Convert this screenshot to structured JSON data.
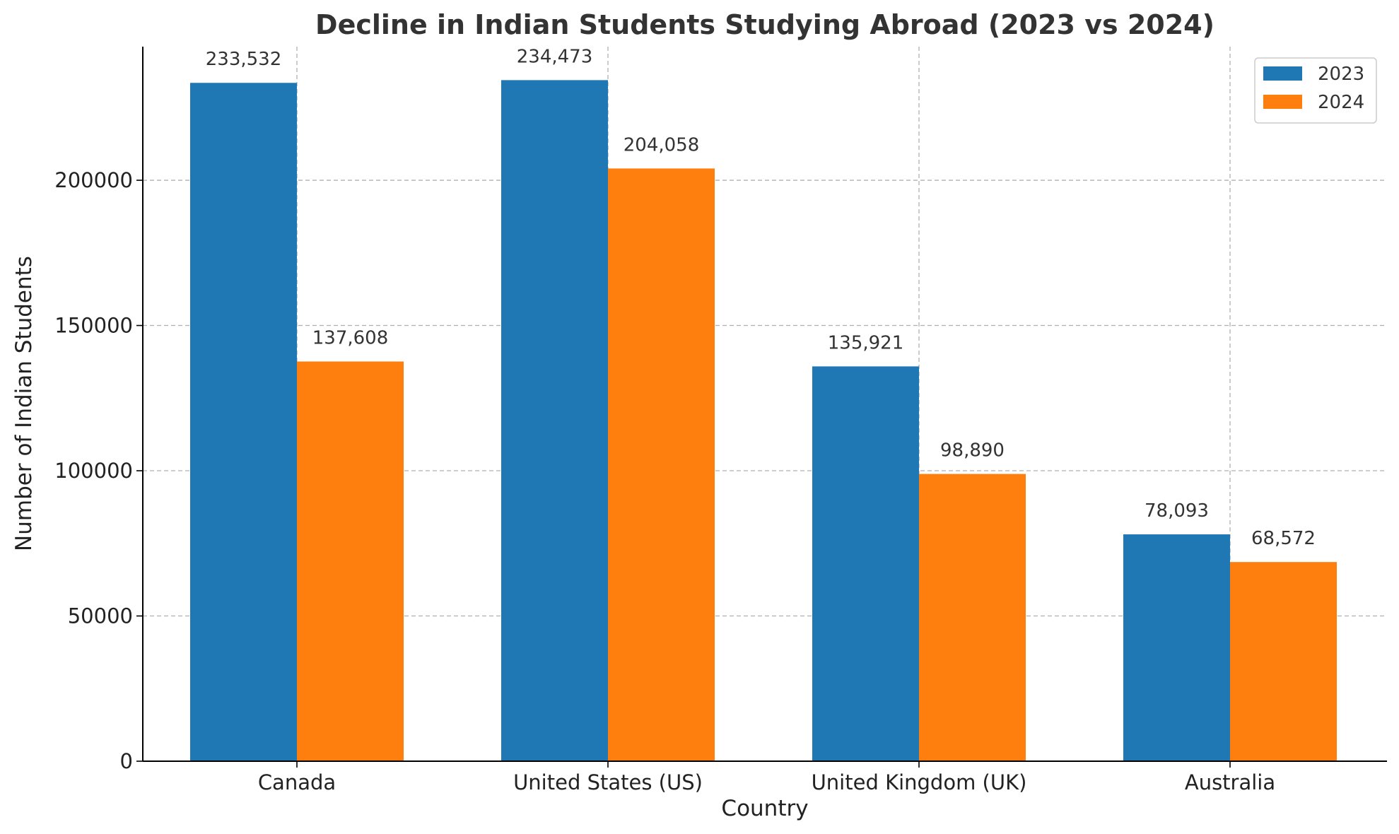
{
  "chart_data": {
    "type": "bar",
    "title": "Decline in Indian Students Studying Abroad (2023 vs 2024)",
    "xlabel": "Country",
    "ylabel": "Number of Indian Students",
    "categories": [
      "Canada",
      "United States (US)",
      "United Kingdom (UK)",
      "Australia"
    ],
    "series": [
      {
        "name": "2023",
        "color": "#1f77b4",
        "values": [
          233532,
          234473,
          135921,
          78093
        ],
        "labels": [
          "233,532",
          "234,473",
          "135,921",
          "78,093"
        ]
      },
      {
        "name": "2024",
        "color": "#ff7f0e",
        "values": [
          137608,
          204058,
          98890,
          68572
        ],
        "labels": [
          "137,608",
          "204,058",
          "98,890",
          "68,572"
        ]
      }
    ],
    "ylim": [
      0,
      246000
    ],
    "yticks": [
      0,
      50000,
      100000,
      150000,
      200000
    ],
    "ytick_labels": [
      "0",
      "50000",
      "100000",
      "150000",
      "200000"
    ],
    "grid": true,
    "legend_position": "top-right"
  }
}
